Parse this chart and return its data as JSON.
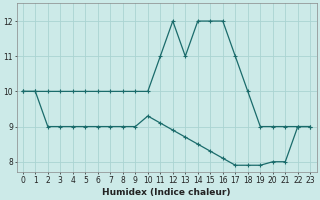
{
  "xlabel": "Humidex (Indice chaleur)",
  "background_color": "#cceae8",
  "line_color": "#1a6b6b",
  "grid_color": "#aad4d2",
  "x_upper": [
    0,
    1,
    2,
    3,
    4,
    5,
    6,
    7,
    8,
    9,
    10,
    11,
    12,
    13,
    14,
    15,
    16,
    17,
    18,
    19,
    20,
    21,
    22,
    23
  ],
  "y_upper": [
    10,
    10,
    10,
    10,
    10,
    10,
    10,
    10,
    10,
    10,
    10,
    11,
    12,
    11,
    12,
    12,
    12,
    11,
    10,
    9,
    9,
    9,
    9,
    9
  ],
  "x_lower": [
    0,
    1,
    2,
    3,
    4,
    5,
    6,
    7,
    8,
    9,
    10,
    11,
    12,
    13,
    14,
    15,
    16,
    17,
    18,
    19,
    20,
    21,
    22,
    23
  ],
  "y_lower": [
    10,
    10,
    9,
    9,
    9,
    9,
    9,
    9,
    9,
    9,
    9.3,
    9.1,
    8.9,
    8.7,
    8.5,
    8.3,
    8.1,
    7.9,
    7.9,
    7.9,
    8,
    8,
    9,
    9
  ],
  "ylim": [
    7.7,
    12.5
  ],
  "yticks": [
    8,
    9,
    10,
    11,
    12
  ],
  "xlim": [
    -0.5,
    23.5
  ],
  "xticks": [
    0,
    1,
    2,
    3,
    4,
    5,
    6,
    7,
    8,
    9,
    10,
    11,
    12,
    13,
    14,
    15,
    16,
    17,
    18,
    19,
    20,
    21,
    22,
    23
  ]
}
